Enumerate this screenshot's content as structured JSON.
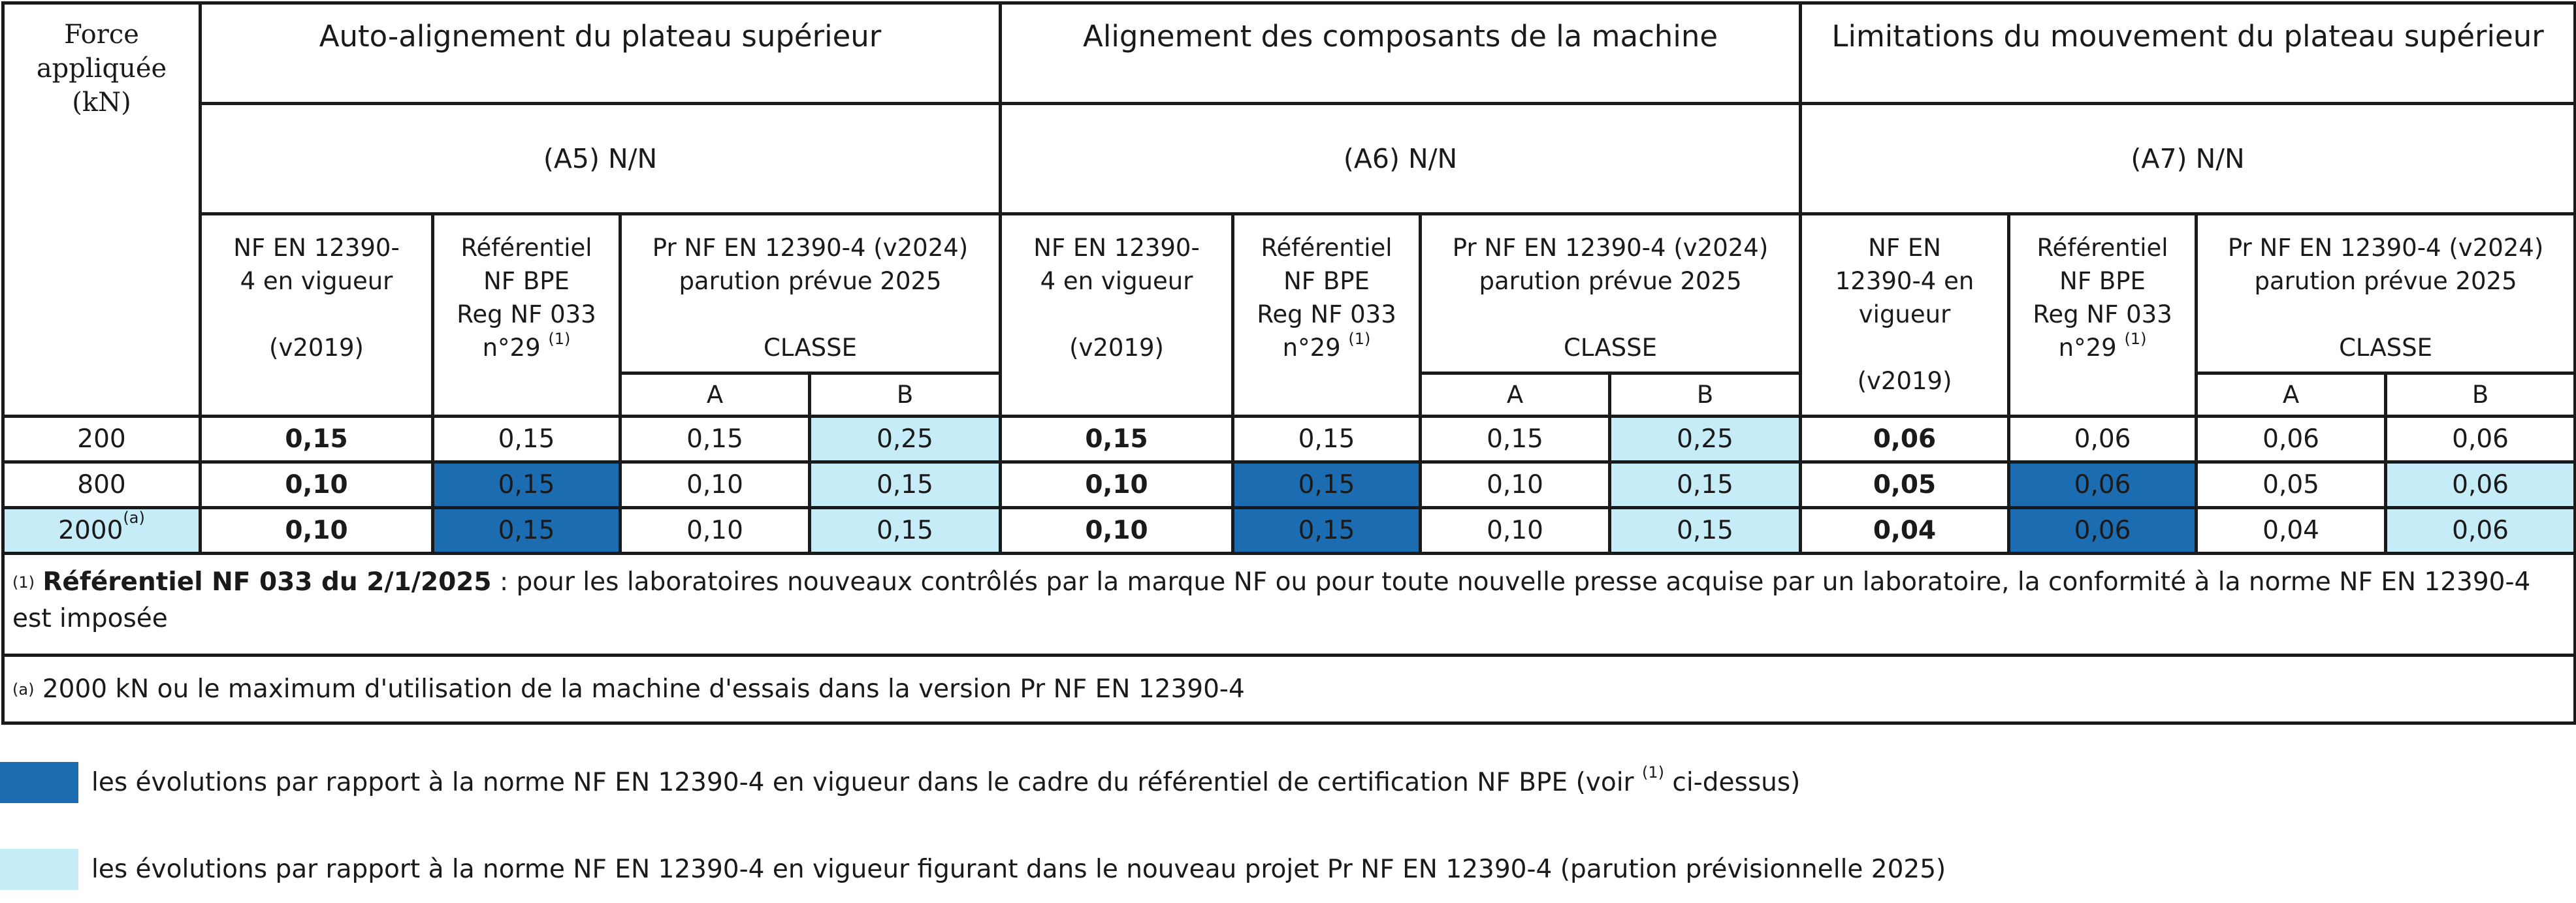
{
  "header": {
    "force_label": [
      "Force",
      "appliquée",
      "(kN)"
    ],
    "groups": [
      {
        "title": "Auto-alignement du plateau supérieur",
        "ref": "(A5)   N/N"
      },
      {
        "title": "Alignement des composants de la machine",
        "ref": "(A6)   N/N"
      },
      {
        "title": "Limitations du mouvement du plateau supérieur",
        "ref": "(A7) N/N"
      }
    ],
    "sub_a": {
      "lines": [
        "NF EN 12390-",
        "4 en vigueur"
      ],
      "version": "(v2019)"
    },
    "sub_c": {
      "lines": [
        "NF EN",
        "12390-4 en",
        "vigueur"
      ],
      "version": "(v2019)"
    },
    "sub_b": {
      "lines": [
        "Référentiel",
        "NF BPE",
        "Reg NF 033",
        "n°29 "
      ],
      "footnote_mark": "(1)"
    },
    "sub_pr": {
      "lines": [
        "Pr NF EN 12390-4 (v2024)",
        "parution prévue 2025"
      ],
      "classe": "CLASSE"
    },
    "class_a": "A",
    "class_b": "B"
  },
  "rows": [
    {
      "force": "200",
      "force_mark": "",
      "values": [
        "0,15",
        "0,15",
        "0,15",
        "0,25",
        "0,15",
        "0,15",
        "0,15",
        "0,25",
        "0,06",
        "0,06",
        "0,06",
        "0,06"
      ]
    },
    {
      "force": "800",
      "force_mark": "",
      "values": [
        "0,10",
        "0,15",
        "0,10",
        "0,15",
        "0,10",
        "0,15",
        "0,10",
        "0,15",
        "0,05",
        "0,06",
        "0,05",
        "0,06"
      ]
    },
    {
      "force": "2000",
      "force_mark": "(a)",
      "values": [
        "0,10",
        "0,15",
        "0,10",
        "0,15",
        "0,10",
        "0,15",
        "0,10",
        "0,15",
        "0,04",
        "0,06",
        "0,04",
        "0,06"
      ]
    }
  ],
  "footnotes": {
    "f1_mark": "(1)",
    "f1_bold": "Référentiel NF 033 du 2/1/2025",
    "f1_text": " : pour les laboratoires nouveaux contrôlés par la marque NF ou pour toute nouvelle presse acquise par un laboratoire, la conformité à la norme NF EN 12390-4 est imposée",
    "fa_mark": "(a)",
    "fa_text": " 2000 kN ou le maximum d'utilisation de la machine d'essais dans la version Pr NF EN 12390-4"
  },
  "legend": {
    "dark_color": "#1c6cb2",
    "light_color": "#c6ecf8",
    "dark_text_before": "les évolutions par rapport à la norme NF EN 12390-4 en vigueur dans le cadre du référentiel de certification NF BPE (voir ",
    "dark_mark": "(1)",
    "dark_text_after": " ci-dessus)",
    "light_text": "les évolutions par rapport à la norme NF EN 12390-4 en vigueur figurant dans le nouveau projet Pr NF EN 12390-4 (parution prévisionnelle 2025)"
  }
}
